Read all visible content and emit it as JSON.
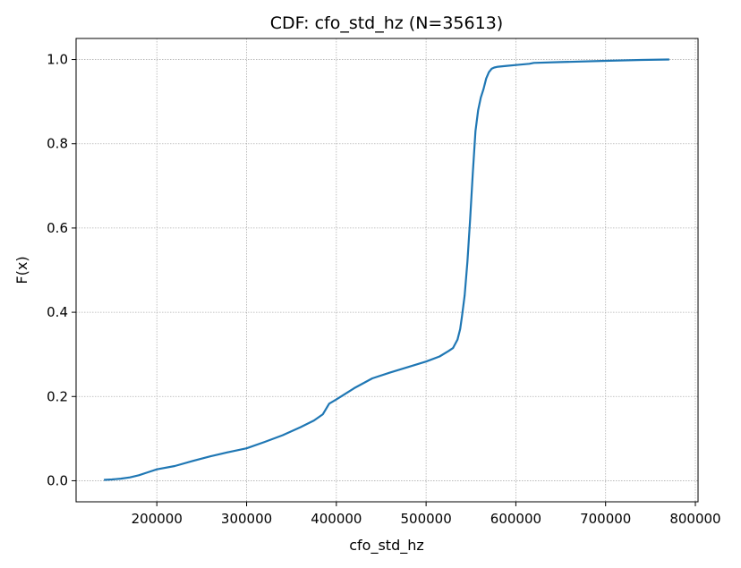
{
  "chart_data": {
    "type": "line",
    "title": "CDF: cfo_std_hz  (N=35613)",
    "xlabel": "cfo_std_hz",
    "ylabel": "F(x)",
    "xlim": [
      110000,
      803000
    ],
    "ylim": [
      -0.05,
      1.05
    ],
    "xticks": [
      200000,
      300000,
      400000,
      500000,
      600000,
      700000,
      800000
    ],
    "yticks": [
      0.0,
      0.2,
      0.4,
      0.6,
      0.8,
      1.0
    ],
    "xtick_labels": [
      "200000",
      "300000",
      "400000",
      "500000",
      "600000",
      "700000",
      "800000"
    ],
    "ytick_labels": [
      "0.0",
      "0.2",
      "0.4",
      "0.6",
      "0.8",
      "1.0"
    ],
    "grid": true,
    "line_color": "#1f77b4",
    "series": [
      {
        "x": [
          141000,
          150000,
          160000,
          170000,
          180000,
          190000,
          200000,
          220000,
          240000,
          260000,
          280000,
          300000,
          320000,
          340000,
          360000,
          375000,
          385000,
          392000,
          400000,
          420000,
          440000,
          460000,
          480000,
          500000,
          515000,
          525000,
          530000,
          535000,
          538000,
          540000,
          543000,
          546000,
          549000,
          552000,
          555000,
          558000,
          561000,
          564000,
          567000,
          570000,
          573000,
          576000,
          580000,
          590000,
          600000,
          615000,
          620000,
          650000,
          700000,
          740000,
          771000
        ],
        "y": [
          0.002,
          0.003,
          0.005,
          0.008,
          0.013,
          0.02,
          0.027,
          0.035,
          0.047,
          0.058,
          0.068,
          0.077,
          0.092,
          0.108,
          0.127,
          0.143,
          0.158,
          0.183,
          0.193,
          0.22,
          0.243,
          0.257,
          0.27,
          0.283,
          0.295,
          0.308,
          0.315,
          0.335,
          0.36,
          0.39,
          0.44,
          0.52,
          0.62,
          0.73,
          0.83,
          0.88,
          0.91,
          0.93,
          0.955,
          0.97,
          0.978,
          0.981,
          0.983,
          0.985,
          0.987,
          0.99,
          0.992,
          0.994,
          0.997,
          0.999,
          1.0
        ]
      }
    ]
  }
}
